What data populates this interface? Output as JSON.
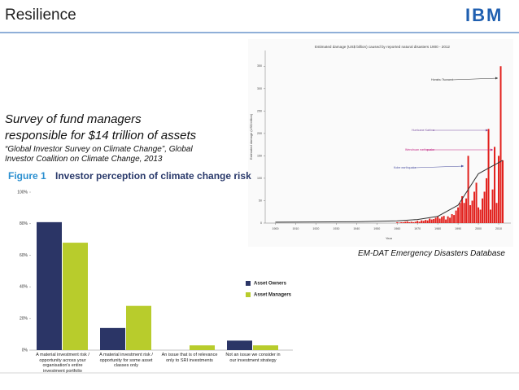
{
  "slide": {
    "title": "Resilience",
    "logo": "IBM",
    "heading": [
      "Survey of fund managers",
      "responsible for $14 trillion of assets"
    ],
    "source": [
      "“Global Investor Survey on Climate Change”, Global",
      "Investor Coalition on Climate Change, 2013"
    ],
    "caption": "EM-DAT Emergency Disasters Database"
  },
  "chart_data": [
    {
      "type": "bar",
      "figure_label": "Figure 1",
      "title": "Investor perception of climate change risk",
      "categories": [
        "A material investment risk / opportunity across your organisation's entire investment portfolio",
        "A material investment risk / opportunity for some asset classes only",
        "An issue that is of relevance only to SRI investments",
        "Not an issue we consider in our investment strategy"
      ],
      "series": [
        {
          "name": "Asset Owners",
          "color": "#2b3566",
          "values": [
            81,
            14,
            0,
            6
          ]
        },
        {
          "name": "Asset Managers",
          "color": "#b8cc2c",
          "values": [
            68,
            28,
            3,
            3
          ]
        }
      ],
      "ylim": [
        0,
        100
      ],
      "yticks": [
        {
          "value": 0,
          "label": "0%"
        },
        {
          "value": 20,
          "label": "20%"
        },
        {
          "value": 40,
          "label": "40%"
        },
        {
          "value": 60,
          "label": "60%"
        },
        {
          "value": 80,
          "label": "80%"
        },
        {
          "value": 100,
          "label": "100%"
        }
      ],
      "legend": "right"
    },
    {
      "type": "bar",
      "title": "Estimated damage (US$ billion) caused by reported natural disasters 1900 - 2012",
      "y_label": "Estimated damage (US$ billion)",
      "x_label": "Year",
      "color": "#e2201c",
      "x": [
        1960,
        1961,
        1962,
        1963,
        1964,
        1965,
        1966,
        1967,
        1968,
        1969,
        1970,
        1971,
        1972,
        1973,
        1974,
        1975,
        1976,
        1977,
        1978,
        1979,
        1980,
        1981,
        1982,
        1983,
        1984,
        1985,
        1986,
        1987,
        1988,
        1989,
        1990,
        1991,
        1992,
        1993,
        1994,
        1995,
        1996,
        1997,
        1998,
        1999,
        2000,
        2001,
        2002,
        2003,
        2004,
        2005,
        2006,
        2007,
        2008,
        2009,
        2010,
        2011,
        2012
      ],
      "values": [
        2,
        1,
        2,
        2,
        3,
        4,
        2,
        3,
        2,
        3,
        5,
        3,
        6,
        5,
        7,
        6,
        10,
        8,
        9,
        12,
        15,
        10,
        14,
        16,
        8,
        15,
        12,
        20,
        18,
        28,
        35,
        45,
        60,
        45,
        55,
        150,
        40,
        50,
        70,
        90,
        35,
        30,
        55,
        70,
        100,
        210,
        30,
        75,
        170,
        45,
        150,
        350,
        140
      ],
      "trend_x": [
        1900,
        1940,
        1960,
        1970,
        1980,
        1990,
        2000,
        2012
      ],
      "trend_values": [
        2,
        3,
        5,
        8,
        15,
        40,
        110,
        140
      ],
      "trend_color": "#333333",
      "xlim": [
        1895,
        2016
      ],
      "xticks": [
        1900,
        1910,
        1920,
        1930,
        1940,
        1950,
        1960,
        1970,
        1980,
        1990,
        2000,
        2010
      ],
      "ylim": [
        0,
        385
      ],
      "yticks": [
        0,
        50,
        100,
        150,
        200,
        250,
        300,
        350
      ],
      "annotations": [
        "Honshu Tsunami",
        "Hurricane Katrina",
        "Wenchuan earthquake",
        "Kobe earthquake"
      ]
    }
  ]
}
